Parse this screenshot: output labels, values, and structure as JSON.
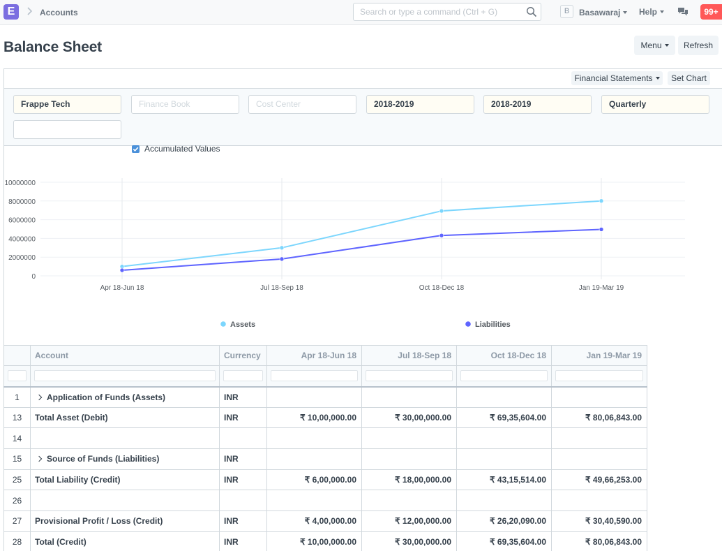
{
  "navbar": {
    "logo_letter": "E",
    "breadcrumb": "Accounts",
    "search_placeholder": "Search or type a command (Ctrl + G)",
    "avatar_letter": "B",
    "user_name": "Basawaraj",
    "help_label": "Help",
    "notification_count": "99+"
  },
  "page": {
    "title": "Balance Sheet",
    "menu_label": "Menu",
    "refresh_label": "Refresh"
  },
  "panel": {
    "financial_statements_label": "Financial Statements",
    "set_chart_label": "Set Chart"
  },
  "filters": {
    "company": "Frappe Tech",
    "finance_book_placeholder": "Finance Book",
    "cost_center_placeholder": "Cost Center",
    "from_fiscal_year": "2018-2019",
    "to_fiscal_year": "2018-2019",
    "periodicity": "Quarterly",
    "extra_field": "",
    "accumulated_values_label": "Accumulated Values",
    "accumulated_values_checked": true
  },
  "chart_data": {
    "type": "line",
    "categories": [
      "Apr 18-Jun 18",
      "Jul 18-Sep 18",
      "Oct 18-Dec 18",
      "Jan 19-Mar 19"
    ],
    "series": [
      {
        "name": "Assets",
        "color": "#7cd6fd",
        "values": [
          1000000,
          3000000,
          6935604,
          8006843
        ]
      },
      {
        "name": "Liabilities",
        "color": "#5e64ff",
        "values": [
          600000,
          1800000,
          4315514,
          4966253
        ]
      }
    ],
    "y_ticks": [
      0,
      2000000,
      4000000,
      6000000,
      8000000,
      10000000
    ],
    "ylim": [
      0,
      10000000
    ],
    "legend_position": "bottom",
    "grid": true
  },
  "table": {
    "columns": [
      "Account",
      "Currency",
      "Apr 18-Jun 18",
      "Jul 18-Sep 18",
      "Oct 18-Dec 18",
      "Jan 19-Mar 19"
    ],
    "rows": [
      {
        "idx": "1",
        "account": "Application of Funds (Assets)",
        "group": true,
        "currency": "INR",
        "values": [
          "",
          "",
          "",
          ""
        ]
      },
      {
        "idx": "13",
        "account": "Total Asset (Debit)",
        "group": false,
        "currency": "INR",
        "values": [
          "₹ 10,00,000.00",
          "₹ 30,00,000.00",
          "₹ 69,35,604.00",
          "₹ 80,06,843.00"
        ]
      },
      {
        "idx": "14",
        "account": "",
        "group": false,
        "currency": "",
        "values": [
          "",
          "",
          "",
          ""
        ]
      },
      {
        "idx": "15",
        "account": "Source of Funds (Liabilities)",
        "group": true,
        "currency": "INR",
        "values": [
          "",
          "",
          "",
          ""
        ]
      },
      {
        "idx": "25",
        "account": "Total Liability (Credit)",
        "group": false,
        "currency": "INR",
        "values": [
          "₹ 6,00,000.00",
          "₹ 18,00,000.00",
          "₹ 43,15,514.00",
          "₹ 49,66,253.00"
        ]
      },
      {
        "idx": "26",
        "account": "",
        "group": false,
        "currency": "",
        "values": [
          "",
          "",
          "",
          ""
        ]
      },
      {
        "idx": "27",
        "account": "Provisional Profit / Loss (Credit)",
        "group": false,
        "currency": "INR",
        "values": [
          "₹ 4,00,000.00",
          "₹ 12,00,000.00",
          "₹ 26,20,090.00",
          "₹ 30,40,590.00"
        ]
      },
      {
        "idx": "28",
        "account": "Total (Credit)",
        "group": false,
        "currency": "INR",
        "values": [
          "₹ 10,00,000.00",
          "₹ 30,00,000.00",
          "₹ 69,35,604.00",
          "₹ 80,06,843.00"
        ]
      }
    ]
  }
}
